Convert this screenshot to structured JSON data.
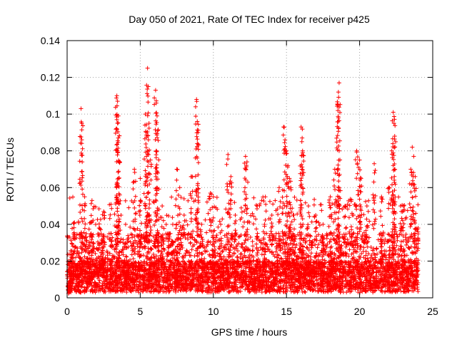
{
  "chart_data": {
    "type": "scatter",
    "title": "Day 050 of 2021, Rate Of TEC Index for receiver p425",
    "xlabel": "GPS time / hours",
    "ylabel": "ROTI / TECUs",
    "xlim": [
      0,
      25
    ],
    "ylim": [
      0,
      0.14
    ],
    "xticks": [
      0,
      5,
      10,
      15,
      20,
      25
    ],
    "xtick_labels": [
      "0",
      "5",
      "10",
      "15",
      "20",
      "25"
    ],
    "yticks": [
      0,
      0.02,
      0.04,
      0.06,
      0.08,
      0.1,
      0.12,
      0.14
    ],
    "ytick_labels": [
      "0",
      "0.02",
      "0.04",
      "0.06",
      "0.08",
      "0.1",
      "0.12",
      "0.14"
    ],
    "grid": true,
    "marker": "+",
    "marker_color": "#ff0000",
    "data_range_x": [
      0,
      24
    ],
    "series": [
      {
        "name": "ROTI",
        "points": [
          [
            0.15,
            0.009
          ],
          [
            0.3,
            0.022
          ],
          [
            0.5,
            0.041
          ],
          [
            0.7,
            0.018
          ],
          [
            0.95,
            0.103
          ],
          [
            1.0,
            0.095
          ],
          [
            1.0,
            0.086
          ],
          [
            1.2,
            0.055
          ],
          [
            1.5,
            0.03
          ],
          [
            1.7,
            0.053
          ],
          [
            2.2,
            0.038
          ],
          [
            2.5,
            0.047
          ],
          [
            3.0,
            0.035
          ],
          [
            3.4,
            0.11
          ],
          [
            3.45,
            0.107
          ],
          [
            3.5,
            0.099
          ],
          [
            3.4,
            0.097
          ],
          [
            3.5,
            0.087
          ],
          [
            3.55,
            0.074
          ],
          [
            3.4,
            0.062
          ],
          [
            4.0,
            0.04
          ],
          [
            4.6,
            0.07
          ],
          [
            5.0,
            0.065
          ],
          [
            5.35,
            0.1
          ],
          [
            5.4,
            0.09
          ],
          [
            5.5,
            0.125
          ],
          [
            5.55,
            0.115
          ],
          [
            5.6,
            0.095
          ],
          [
            5.5,
            0.08
          ],
          [
            5.7,
            0.075
          ],
          [
            6.05,
            0.113
          ],
          [
            6.1,
            0.106
          ],
          [
            6.15,
            0.099
          ],
          [
            6.2,
            0.091
          ],
          [
            6.1,
            0.08
          ],
          [
            6.5,
            0.05
          ],
          [
            7.0,
            0.035
          ],
          [
            7.5,
            0.07
          ],
          [
            7.7,
            0.06
          ],
          [
            8.0,
            0.045
          ],
          [
            8.5,
            0.066
          ],
          [
            8.85,
            0.108
          ],
          [
            8.9,
            0.096
          ],
          [
            8.95,
            0.09
          ],
          [
            8.9,
            0.084
          ],
          [
            9.2,
            0.04
          ],
          [
            9.8,
            0.057
          ],
          [
            10.0,
            0.055
          ],
          [
            10.5,
            0.04
          ],
          [
            11.0,
            0.078
          ],
          [
            11.2,
            0.066
          ],
          [
            11.5,
            0.045
          ],
          [
            12.2,
            0.077
          ],
          [
            12.3,
            0.074
          ],
          [
            13.0,
            0.05
          ],
          [
            13.5,
            0.04
          ],
          [
            14.0,
            0.045
          ],
          [
            14.5,
            0.06
          ],
          [
            14.8,
            0.093
          ],
          [
            14.9,
            0.086
          ],
          [
            15.0,
            0.08
          ],
          [
            15.1,
            0.072
          ],
          [
            15.2,
            0.065
          ],
          [
            15.3,
            0.06
          ],
          [
            15.5,
            0.045
          ],
          [
            16.0,
            0.093
          ],
          [
            16.05,
            0.085
          ],
          [
            16.1,
            0.08
          ],
          [
            16.05,
            0.07
          ],
          [
            16.5,
            0.05
          ],
          [
            17.0,
            0.045
          ],
          [
            17.5,
            0.04
          ],
          [
            18.0,
            0.055
          ],
          [
            18.3,
            0.07
          ],
          [
            18.5,
            0.105
          ],
          [
            18.55,
            0.112
          ],
          [
            18.6,
            0.117
          ],
          [
            18.55,
            0.098
          ],
          [
            18.6,
            0.08
          ],
          [
            19.0,
            0.05
          ],
          [
            19.5,
            0.045
          ],
          [
            19.8,
            0.08
          ],
          [
            20.0,
            0.075
          ],
          [
            20.1,
            0.065
          ],
          [
            20.5,
            0.05
          ],
          [
            21.0,
            0.073
          ],
          [
            21.5,
            0.055
          ],
          [
            22.0,
            0.06
          ],
          [
            22.2,
            0.08
          ],
          [
            22.3,
            0.101
          ],
          [
            22.35,
            0.095
          ],
          [
            22.4,
            0.088
          ],
          [
            22.3,
            0.072
          ],
          [
            22.8,
            0.05
          ],
          [
            23.0,
            0.05
          ],
          [
            23.5,
            0.07
          ],
          [
            23.6,
            0.082
          ],
          [
            23.7,
            0.077
          ],
          [
            23.8,
            0.066
          ],
          [
            24.0,
            0.038
          ]
        ]
      }
    ]
  }
}
